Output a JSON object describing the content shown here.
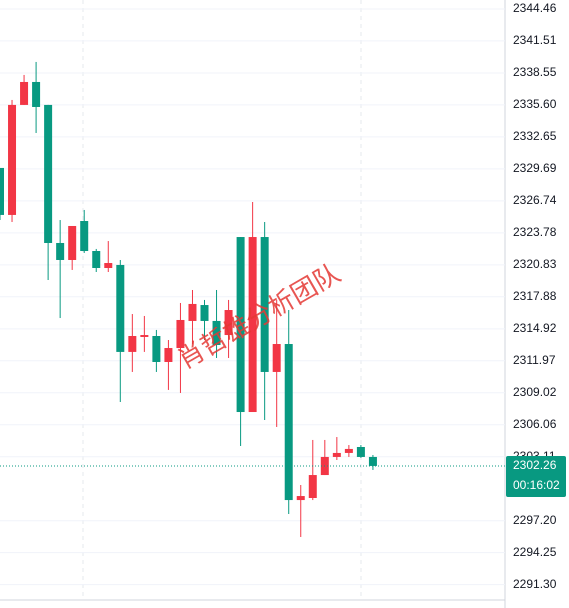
{
  "chart_data": {
    "type": "candlestick",
    "open": [
      2329.78,
      2325.44,
      2335.6,
      2337.72,
      2335.6,
      2322.85,
      2321.28,
      2324.88,
      2322.11,
      2320.54,
      2320.82,
      2312.79,
      2314.17,
      2314.26,
      2311.86,
      2313.15,
      2315.65,
      2317.12,
      2315.65,
      2314.35,
      2323.4,
      2307.24,
      2323.4,
      2310.94,
      2313.52,
      2299.11,
      2299.3,
      2301.42,
      2303.09,
      2303.46,
      2304.01,
      2303.09
    ],
    "high": [
      2329.78,
      2336.06,
      2338.37,
      2339.57,
      2335.6,
      2324.97,
      2324.42,
      2325.9,
      2322.3,
      2323.03,
      2321.28,
      2316.29,
      2316.11,
      2314.82,
      2313.89,
      2317.31,
      2318.51,
      2317.59,
      2318.51,
      2317.59,
      2323.4,
      2326.64,
      2324.79,
      2317.59,
      2316.66,
      2300.5,
      2304.66,
      2304.66,
      2304.93,
      2304.19,
      2304.19,
      2303.27
    ],
    "low": [
      2324.97,
      2324.79,
      2335.6,
      2333.01,
      2319.43,
      2315.92,
      2320.36,
      2321.93,
      2320.17,
      2320.17,
      2308.17,
      2310.94,
      2312.79,
      2310.94,
      2309.28,
      2309.0,
      2313.52,
      2313.89,
      2312.23,
      2312.23,
      2304.1,
      2307.24,
      2306.5,
      2305.86,
      2297.82,
      2295.7,
      2299.11,
      2301.42,
      2302.81,
      2303.09,
      2303.0,
      2301.89
    ],
    "close": [
      2325.44,
      2335.6,
      2337.72,
      2335.41,
      2322.85,
      2321.28,
      2324.42,
      2322.11,
      2320.54,
      2321.0,
      2312.79,
      2314.26,
      2314.35,
      2311.86,
      2313.15,
      2315.74,
      2317.22,
      2315.65,
      2313.43,
      2316.66,
      2307.24,
      2323.4,
      2310.94,
      2313.52,
      2299.11,
      2299.48,
      2301.42,
      2303.09,
      2303.46,
      2303.83,
      2303.09,
      2302.26
    ],
    "up_color": "#f23645",
    "down_color": "#089981",
    "ylim": [
      2289.88,
      2345.29
    ],
    "yticks": [
      2344.46,
      2341.51,
      2338.55,
      {
        "value": 2335.6,
        "label": "2335.60"
      },
      2332.65,
      2329.69,
      2326.74,
      2323.78,
      2320.83,
      2317.88,
      2314.92,
      2311.97,
      2309.02,
      2306.06,
      2303.11,
      {
        "value": 2297.2,
        "label": "2297.20"
      },
      2294.25,
      {
        "value": 2291.3,
        "label": "2291.30"
      }
    ],
    "grid": true,
    "last_price": 2302.26,
    "countdown": "00:16:02",
    "watermark": "肖哲雄分析团队"
  }
}
